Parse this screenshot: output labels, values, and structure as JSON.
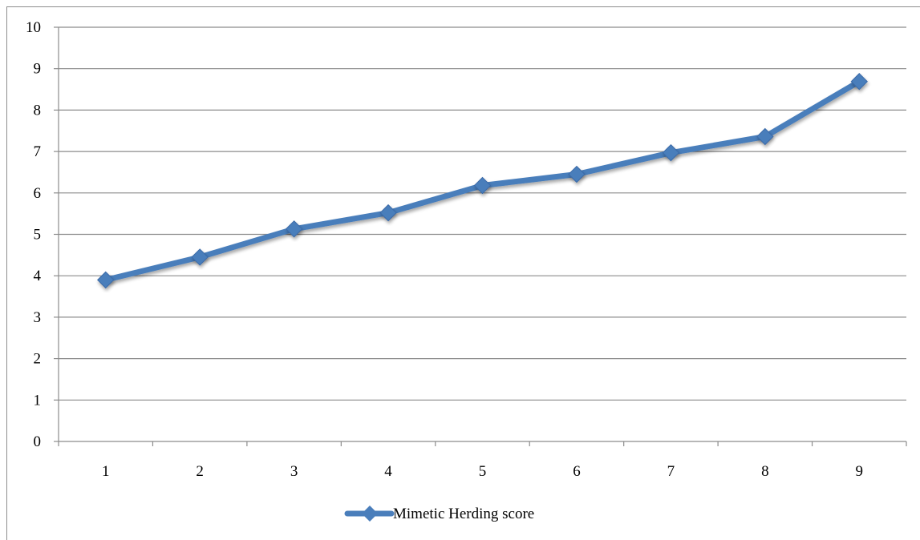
{
  "chart_data": {
    "type": "line",
    "title": "",
    "xlabel": "",
    "ylabel": "",
    "x": [
      1,
      2,
      3,
      4,
      5,
      6,
      7,
      8,
      9
    ],
    "categories": [
      "1",
      "2",
      "3",
      "4",
      "5",
      "6",
      "7",
      "8",
      "9"
    ],
    "ylim": [
      0,
      10
    ],
    "yticks": [
      "0",
      "1",
      "2",
      "3",
      "4",
      "5",
      "6",
      "7",
      "8",
      "9",
      "10"
    ],
    "grid": "horizontal",
    "legend_position": "bottom",
    "series": [
      {
        "name": "Mimetic Herding score",
        "values": [
          3.9,
          4.45,
          5.13,
          5.52,
          6.18,
          6.45,
          6.97,
          7.36,
          8.69
        ],
        "color": "#4a7ebb",
        "marker": "diamond"
      }
    ]
  }
}
